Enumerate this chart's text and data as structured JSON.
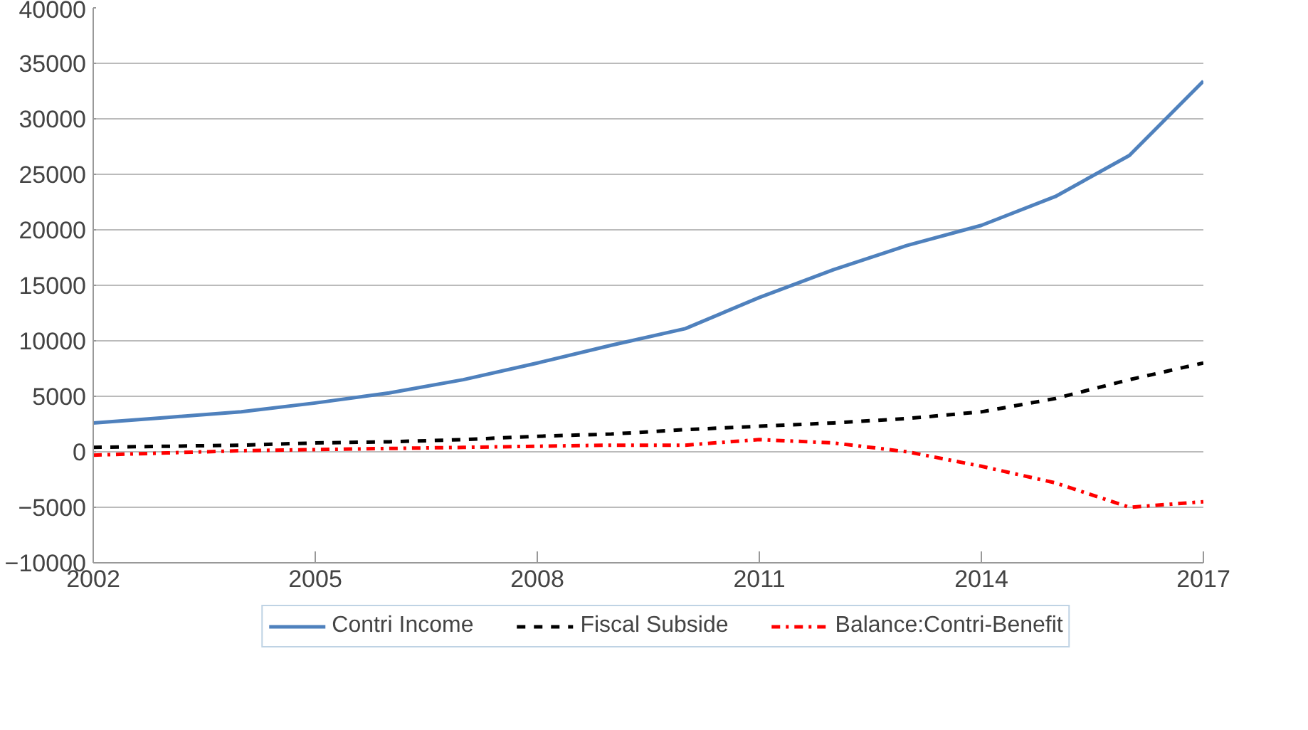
{
  "chart_data": {
    "type": "line",
    "x": [
      2002,
      2003,
      2004,
      2005,
      2006,
      2007,
      2008,
      2009,
      2010,
      2011,
      2012,
      2013,
      2014,
      2015,
      2016,
      2017
    ],
    "series": [
      {
        "name": "Contri Income",
        "color": "#4f81bd",
        "line_style": "solid",
        "values": [
          2600,
          3100,
          3600,
          4400,
          5300,
          6500,
          8000,
          9600,
          11100,
          13900,
          16400,
          18600,
          20400,
          23000,
          26700,
          33400
        ]
      },
      {
        "name": "Fiscal Subside",
        "color": "#000000",
        "line_style": "dashed",
        "values": [
          400,
          500,
          600,
          800,
          900,
          1100,
          1400,
          1600,
          2000,
          2300,
          2600,
          3000,
          3600,
          4800,
          6500,
          8000
        ]
      },
      {
        "name": "Balance:Contri-Benefit",
        "color": "#ff0000",
        "line_style": "dashdot",
        "values": [
          -300,
          -100,
          100,
          200,
          300,
          400,
          500,
          600,
          600,
          1100,
          800,
          0,
          -1300,
          -2800,
          -5000,
          -4500
        ]
      }
    ],
    "xlim": [
      2002,
      2017
    ],
    "xticks": [
      2002,
      2005,
      2008,
      2011,
      2014,
      2017
    ],
    "ylim": [
      -10000,
      40000
    ],
    "yticks": [
      -10000,
      -5000,
      0,
      5000,
      10000,
      15000,
      20000,
      25000,
      30000,
      35000,
      40000
    ],
    "grid": "y",
    "legend": "bottom"
  }
}
